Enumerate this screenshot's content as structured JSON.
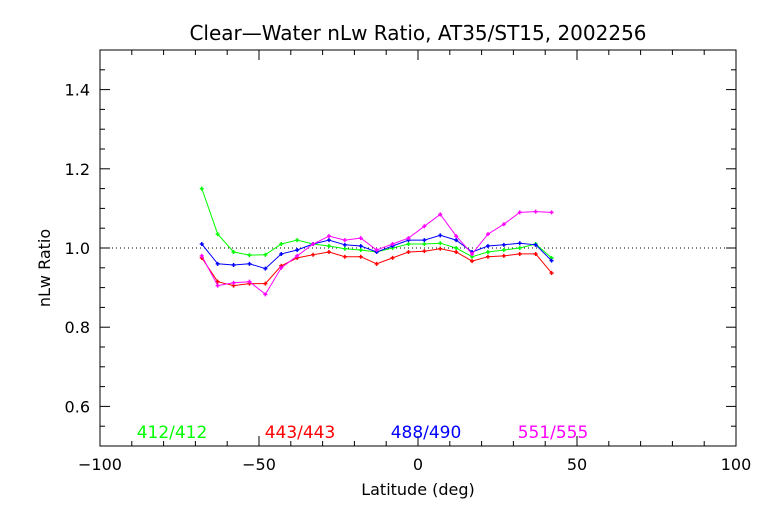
{
  "chart_data": {
    "type": "line",
    "title": "Clear—Water nLw Ratio, AT35/ST15, 2002256",
    "xlabel": "Latitude (deg)",
    "ylabel": "nLw Ratio",
    "xlim": [
      -100,
      100
    ],
    "ylim": [
      0.5,
      1.5
    ],
    "xticks": [
      "−100",
      "−50",
      "0",
      "50",
      "100"
    ],
    "xtick_values": [
      -100,
      -50,
      0,
      50,
      100
    ],
    "yticks": [
      "0.6",
      "0.8",
      "1.0",
      "1.2",
      "1.4"
    ],
    "ytick_values": [
      0.6,
      0.8,
      1.0,
      1.2,
      1.4
    ],
    "reference_line": 1.0,
    "grid": false,
    "legend_placement": "bottom-inside",
    "series": [
      {
        "name": "412/412",
        "color": "#00ff00",
        "x": [
          -68,
          -63,
          -58,
          -53,
          -48,
          -43,
          -38,
          -33,
          -28,
          -23,
          -18,
          -13,
          -8,
          -3,
          2,
          7,
          12,
          17,
          22,
          27,
          32,
          37,
          42
        ],
        "y": [
          1.15,
          1.035,
          0.99,
          0.982,
          0.983,
          1.01,
          1.02,
          1.01,
          1.005,
          0.998,
          0.995,
          0.99,
          1.0,
          1.01,
          1.01,
          1.012,
          1.0,
          0.978,
          0.99,
          0.995,
          1.0,
          1.01,
          0.975
        ]
      },
      {
        "name": "443/443",
        "color": "#ff0000",
        "x": [
          -68,
          -63,
          -58,
          -53,
          -48,
          -43,
          -38,
          -33,
          -28,
          -23,
          -18,
          -13,
          -8,
          -3,
          2,
          7,
          12,
          17,
          22,
          27,
          32,
          37,
          42
        ],
        "y": [
          0.975,
          0.915,
          0.905,
          0.91,
          0.91,
          0.955,
          0.975,
          0.983,
          0.99,
          0.978,
          0.978,
          0.96,
          0.975,
          0.99,
          0.992,
          0.998,
          0.99,
          0.967,
          0.978,
          0.98,
          0.985,
          0.985,
          0.937
        ]
      },
      {
        "name": "488/490",
        "color": "#0000ff",
        "x": [
          -68,
          -63,
          -58,
          -53,
          -48,
          -43,
          -38,
          -33,
          -28,
          -23,
          -18,
          -13,
          -8,
          -3,
          2,
          7,
          12,
          17,
          22,
          27,
          32,
          37,
          42
        ],
        "y": [
          1.01,
          0.96,
          0.957,
          0.96,
          0.948,
          0.985,
          0.995,
          1.01,
          1.02,
          1.008,
          1.005,
          0.99,
          1.005,
          1.02,
          1.02,
          1.032,
          1.02,
          0.99,
          1.005,
          1.008,
          1.012,
          1.008,
          0.968
        ]
      },
      {
        "name": "551/555",
        "color": "#ff00ff",
        "x": [
          -68,
          -63,
          -58,
          -53,
          -48,
          -43,
          -38,
          -33,
          -28,
          -23,
          -18,
          -13,
          -8,
          -3,
          2,
          7,
          12,
          17,
          22,
          27,
          32,
          37,
          42
        ],
        "y": [
          0.98,
          0.905,
          0.912,
          0.915,
          0.883,
          0.95,
          0.98,
          1.01,
          1.03,
          1.02,
          1.025,
          0.995,
          1.01,
          1.025,
          1.055,
          1.085,
          1.03,
          0.985,
          1.035,
          1.06,
          1.09,
          1.092,
          1.09
        ]
      }
    ]
  }
}
